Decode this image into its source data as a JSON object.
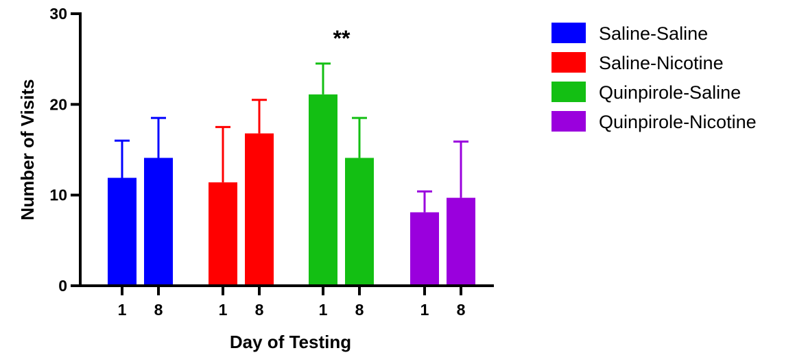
{
  "chart_data": {
    "type": "bar",
    "xlabel": "Day of Testing",
    "ylabel": "Number of Visits",
    "ylim": [
      0,
      30
    ],
    "yticks": [
      0,
      10,
      20,
      30
    ],
    "grid": false,
    "legend_position": "right",
    "annotation": "**",
    "series": [
      {
        "name": "Saline-Saline",
        "color": "#0000ff",
        "categories": [
          "1",
          "8"
        ],
        "values": [
          11.9,
          14.1
        ],
        "error_upper": [
          16.0,
          18.5
        ]
      },
      {
        "name": "Saline-Nicotine",
        "color": "#ff0000",
        "categories": [
          "1",
          "8"
        ],
        "values": [
          11.4,
          16.8
        ],
        "error_upper": [
          17.5,
          20.5
        ]
      },
      {
        "name": "Quinpirole-Saline",
        "color": "#13bf13",
        "categories": [
          "1",
          "8"
        ],
        "values": [
          21.1,
          14.1
        ],
        "error_upper": [
          24.5,
          18.5
        ]
      },
      {
        "name": "Quinpirole-Nicotine",
        "color": "#9a00dd",
        "categories": [
          "1",
          "8"
        ],
        "values": [
          8.1,
          9.7
        ],
        "error_upper": [
          10.4,
          15.9
        ]
      }
    ]
  }
}
